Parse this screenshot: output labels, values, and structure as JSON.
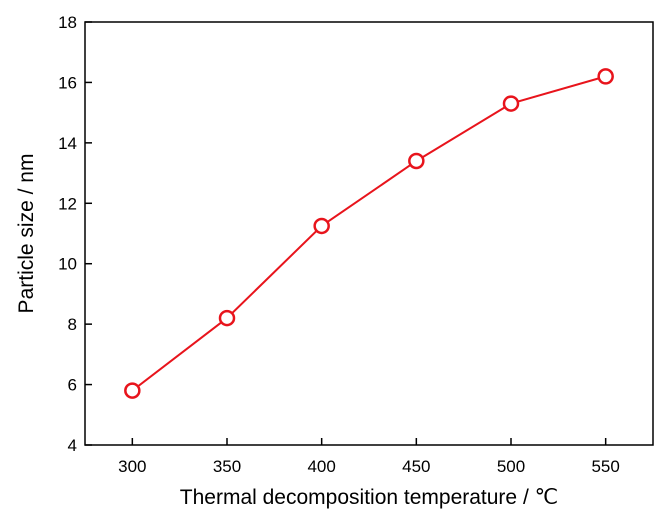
{
  "chart_data": {
    "type": "line",
    "title": "",
    "xlabel": "Thermal decomposition temperature / ℃",
    "ylabel": "Particle size / nm",
    "xlim": [
      275,
      575
    ],
    "ylim": [
      4,
      18
    ],
    "xticks": [
      300,
      350,
      400,
      450,
      500,
      550
    ],
    "yticks": [
      4,
      6,
      8,
      10,
      12,
      14,
      16,
      18
    ],
    "grid": false,
    "legend": "none",
    "series": [
      {
        "color": "#e8141c",
        "marker": "open-circle",
        "x": [
          300,
          350,
          400,
          450,
          500,
          550
        ],
        "y": [
          5.8,
          8.2,
          11.25,
          13.4,
          15.3,
          16.2
        ]
      }
    ]
  }
}
